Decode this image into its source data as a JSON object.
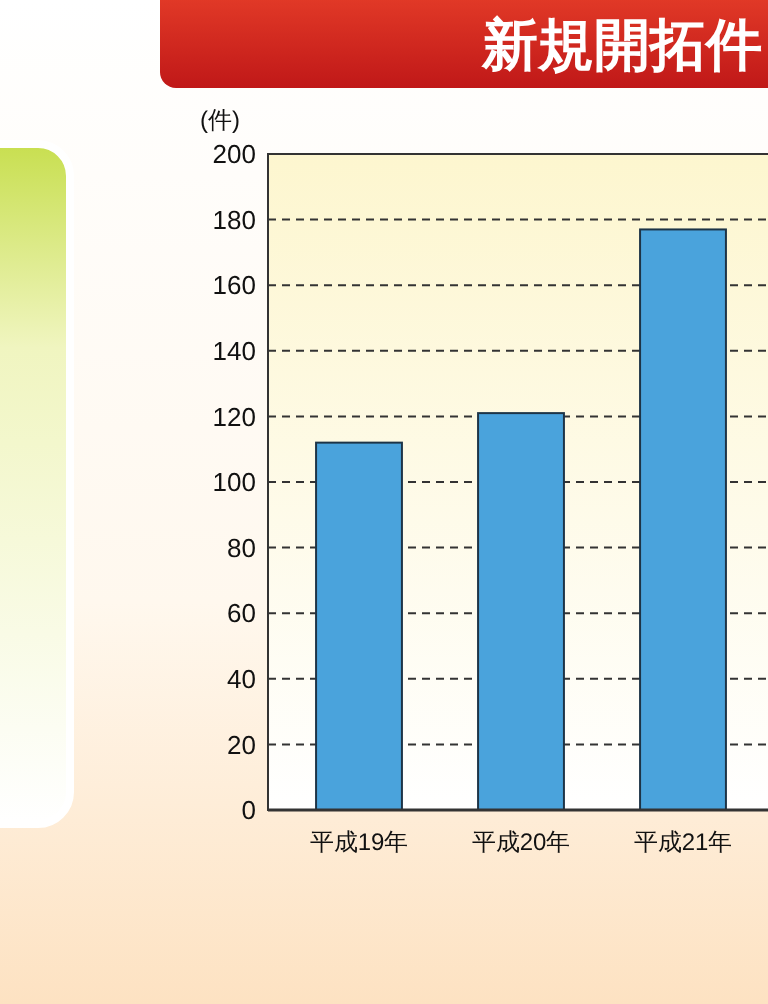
{
  "chart_data": {
    "type": "bar",
    "title": "新規開拓件",
    "ylabel": "(件)",
    "categories": [
      "平成19年",
      "平成20年",
      "平成21年"
    ],
    "values": [
      112,
      121,
      177
    ],
    "color": "#4aa3dc",
    "ylim": [
      0,
      200
    ],
    "yticks": [
      0,
      20,
      40,
      60,
      80,
      100,
      120,
      140,
      160,
      180,
      200
    ],
    "grid": "y"
  }
}
